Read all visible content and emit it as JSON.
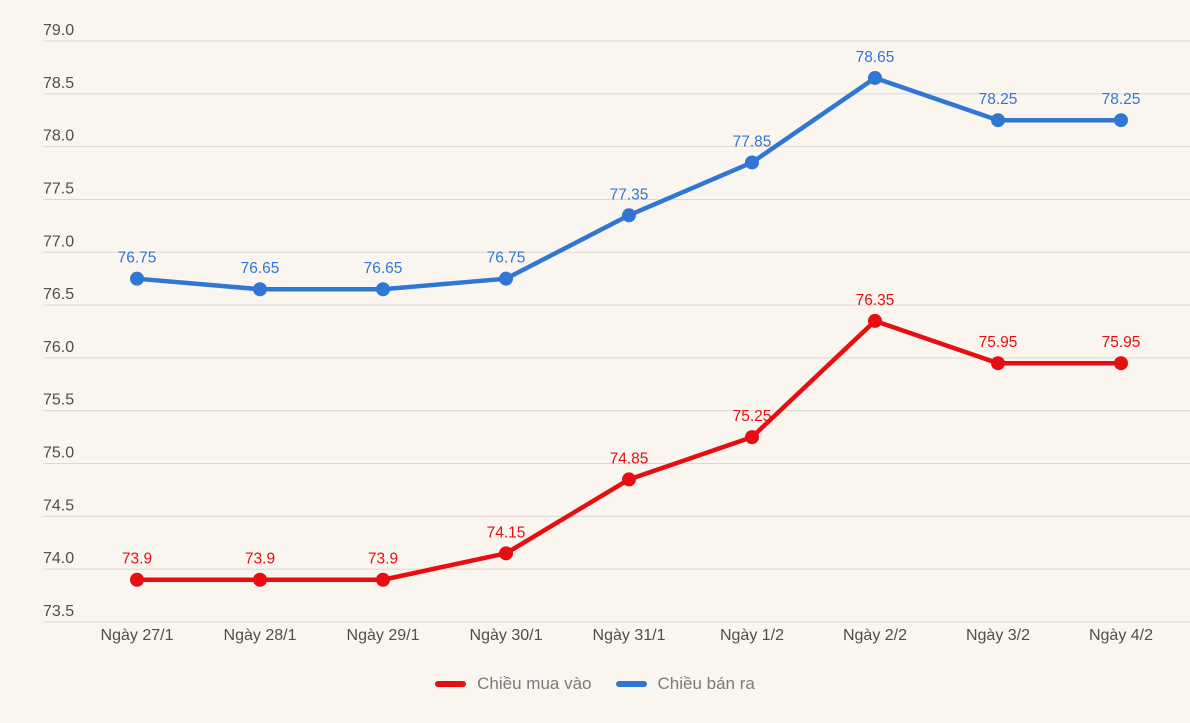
{
  "chart_data": {
    "type": "line",
    "title": "",
    "xlabel": "",
    "ylabel": "",
    "categories": [
      "Ngày 27/1",
      "Ngày 28/1",
      "Ngày 29/1",
      "Ngày 30/1",
      "Ngày 31/1",
      "Ngày 1/2",
      "Ngày 2/2",
      "Ngày 3/2",
      "Ngày 4/2"
    ],
    "series": [
      {
        "name": "Chiều mua vào",
        "color": "#e70d10",
        "values": [
          73.9,
          73.9,
          73.9,
          74.15,
          74.85,
          75.25,
          76.35,
          75.95,
          75.95
        ],
        "point_labels": [
          "73.9",
          "73.9",
          "73.9",
          "74.15",
          "74.85",
          "75.25",
          "76.35",
          "75.95",
          "75.95"
        ]
      },
      {
        "name": "Chiều bán ra",
        "color": "#3077d4",
        "values": [
          76.75,
          76.65,
          76.65,
          76.75,
          77.35,
          77.85,
          78.65,
          78.25,
          78.25
        ],
        "point_labels": [
          "76.75",
          "76.65",
          "76.65",
          "76.75",
          "77.35",
          "77.85",
          "78.65",
          "78.25",
          "78.25"
        ]
      }
    ],
    "y_axis": {
      "min": 73.5,
      "max": 79.0,
      "step": 0.5,
      "tick_labels": [
        "79.0",
        "78.5",
        "78.0",
        "77.5",
        "77.0",
        "76.5",
        "76.0",
        "75.5",
        "75.0",
        "74.5",
        "74.0",
        "73.5"
      ]
    },
    "grid": true,
    "legend_position": "bottom",
    "data_labels": true
  },
  "legend": {
    "items": [
      {
        "label": "Chiều mua vào",
        "color": "#e70d10"
      },
      {
        "label": "Chiều bán ra",
        "color": "#3077d4"
      }
    ]
  },
  "colors": {
    "background": "#faf6ef",
    "gridline": "#dcd8d1",
    "axis_text": "#514d47",
    "legend_text": "#7b7b7b"
  }
}
